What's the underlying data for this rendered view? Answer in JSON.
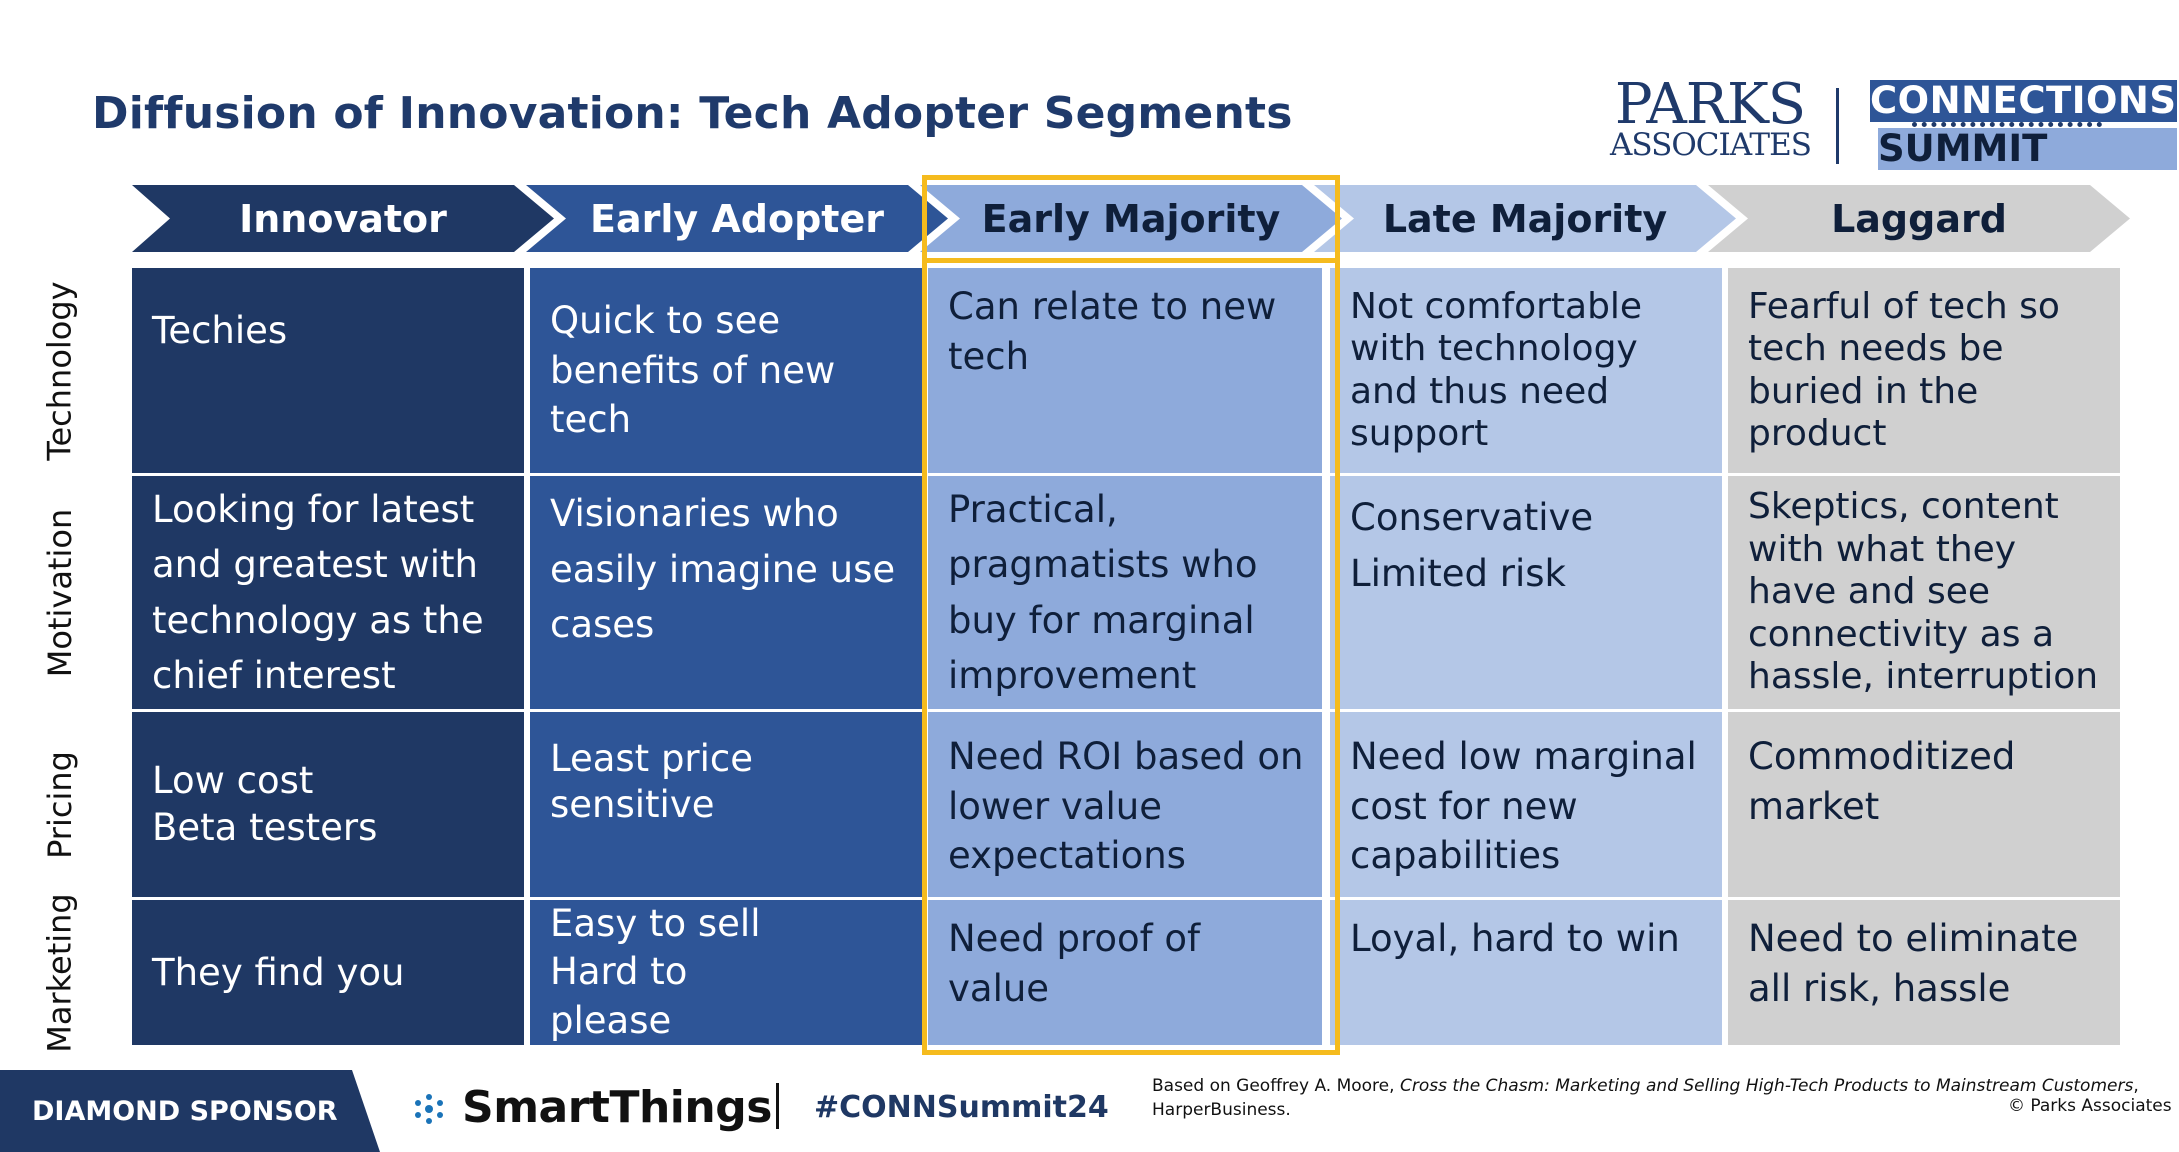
{
  "title": "Diffusion of Innovation: Tech Adopter Segments",
  "logos": {
    "parks_line1": "PARKS",
    "parks_line2": "ASSOCIATES",
    "connections_line1": "CONNECTIONS",
    "connections_line2": "SUMMIT"
  },
  "segments": [
    "Innovator",
    "Early Adopter",
    "Early Majority",
    "Late Majority",
    "Laggard"
  ],
  "rows": [
    {
      "label": "Technology",
      "cells": [
        "Techies",
        "Quick to see benefits of new tech",
        "Can relate to new tech",
        "Not comfortable with technology and thus need support",
        "Fearful of tech so tech needs be buried in the product"
      ]
    },
    {
      "label": "Motivation",
      "cells": [
        "Looking for latest and greatest with technology as the chief interest",
        "Visionaries who easily imagine use cases",
        "Practical, pragmatists who buy for marginal improvement",
        "Conservative Limited risk",
        "Skeptics, content with what they have and see connectivity as a hassle, interruption"
      ]
    },
    {
      "label": "Pricing",
      "cells": [
        "Low cost Beta testers",
        "Least price sensitive",
        "Need ROI based on lower value expectations",
        "Need low marginal cost for new capabilities",
        "Commoditized market"
      ]
    },
    {
      "label": "Marketing",
      "cells": [
        "They find you",
        "Easy to sell Hard to please",
        "Need proof of value",
        "Loyal, hard to win",
        "Need to eliminate all risk, hassle"
      ]
    }
  ],
  "footer": {
    "sponsor_label": "DIAMOND SPONSOR",
    "sponsor_name": "SmartThings",
    "hashtag": "#CONNSummit24",
    "citation_prefix": "Based on Geoffrey A. Moore,",
    "citation_title": "Cross the Chasm: Marketing and Selling High-Tech Products to Mainstream Customers",
    "citation_suffix": ", HarperBusiness.",
    "copyright": "© Parks Associates"
  },
  "colors": {
    "innovator": "#1f3864",
    "early_adopter": "#2e5597",
    "early_majority": "#8eaadb",
    "late_majority": "#b4c7e7",
    "laggard": "#d0d0d0",
    "highlight": "#f5bb1e"
  }
}
